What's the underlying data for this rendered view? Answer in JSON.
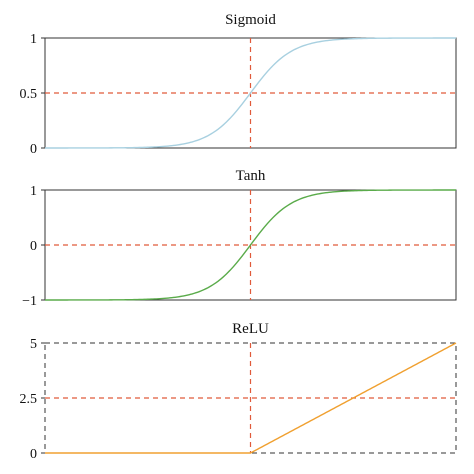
{
  "chart_data": [
    {
      "type": "line",
      "title": "Sigmoid",
      "xlabel": "",
      "ylabel": "",
      "xlim": [
        -10,
        10
      ],
      "ylim": [
        0,
        1
      ],
      "yticks": [
        0,
        0.5,
        1
      ],
      "ytick_labels": [
        "0",
        "0.5",
        "1"
      ],
      "frame_style": "solid",
      "series": [
        {
          "function": "sigmoid",
          "color": "#a8d0e0",
          "x": [
            -10,
            -8,
            -6,
            -5,
            -4,
            -3,
            -2,
            -1,
            0,
            1,
            2,
            3,
            4,
            5,
            6,
            8,
            10
          ],
          "values": [
            5e-05,
            0.0003,
            0.0025,
            0.0067,
            0.018,
            0.047,
            0.119,
            0.269,
            0.5,
            0.731,
            0.881,
            0.953,
            0.982,
            0.993,
            0.9975,
            0.9997,
            0.99995
          ]
        }
      ],
      "reference_lines": {
        "x": 0,
        "y": 0.5,
        "color": "#e05a3a"
      },
      "grid": false
    },
    {
      "type": "line",
      "title": "Tanh",
      "xlabel": "",
      "ylabel": "",
      "xlim": [
        -5,
        5
      ],
      "ylim": [
        -1,
        1
      ],
      "yticks": [
        -1,
        0,
        1
      ],
      "ytick_labels": [
        "−1",
        "0",
        "1"
      ],
      "frame_style": "solid",
      "series": [
        {
          "function": "tanh",
          "color": "#5aab4a",
          "x": [
            -5,
            -4,
            -3,
            -2,
            -1.5,
            -1,
            -0.5,
            0,
            0.5,
            1,
            1.5,
            2,
            3,
            4,
            5
          ],
          "values": [
            -0.9999,
            -0.9993,
            -0.995,
            -0.964,
            -0.905,
            -0.762,
            -0.462,
            0,
            0.462,
            0.762,
            0.905,
            0.964,
            0.995,
            0.9993,
            0.9999
          ]
        }
      ],
      "reference_lines": {
        "x": 0,
        "y": 0,
        "color": "#e05a3a"
      },
      "grid": false
    },
    {
      "type": "line",
      "title": "ReLU",
      "xlabel": "",
      "ylabel": "",
      "xlim": [
        -5,
        5
      ],
      "ylim": [
        0,
        5
      ],
      "yticks": [
        0,
        2.5,
        5
      ],
      "ytick_labels": [
        "0",
        "2.5",
        "5"
      ],
      "frame_style": "dashed",
      "series": [
        {
          "function": "relu",
          "color": "#f0a030",
          "x": [
            -5,
            0,
            5
          ],
          "values": [
            0,
            0,
            5
          ]
        }
      ],
      "reference_lines": {
        "x": 0,
        "y": 2.5,
        "color": "#e05a3a"
      },
      "grid": false
    }
  ]
}
